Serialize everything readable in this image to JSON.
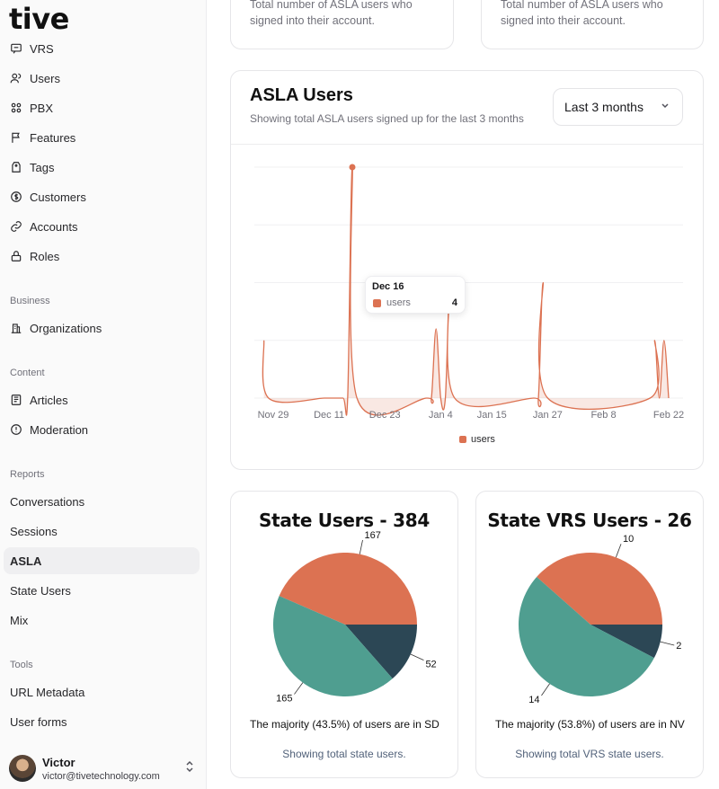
{
  "app": {
    "logo": "tive"
  },
  "sidebar": {
    "items": [
      {
        "label": "VRS",
        "icon": "message-square-icon"
      },
      {
        "label": "Users",
        "icon": "users-icon"
      },
      {
        "label": "PBX",
        "icon": "grid-icon"
      },
      {
        "label": "Features",
        "icon": "flag-icon"
      },
      {
        "label": "Tags",
        "icon": "tag-icon"
      },
      {
        "label": "Customers",
        "icon": "dollar-circle-icon"
      },
      {
        "label": "Accounts",
        "icon": "link-icon"
      },
      {
        "label": "Roles",
        "icon": "lock-icon"
      }
    ],
    "business_label": "Business",
    "business_items": [
      {
        "label": "Organizations",
        "icon": "building-icon"
      }
    ],
    "content_label": "Content",
    "content_items": [
      {
        "label": "Articles",
        "icon": "newspaper-icon"
      },
      {
        "label": "Moderation",
        "icon": "alert-circle-icon"
      }
    ],
    "reports_label": "Reports",
    "reports_items": [
      {
        "label": "Conversations"
      },
      {
        "label": "Sessions"
      },
      {
        "label": "ASLA",
        "active": true
      },
      {
        "label": "State Users"
      },
      {
        "label": "Mix"
      }
    ],
    "tools_label": "Tools",
    "tools_items": [
      {
        "label": "URL Metadata"
      },
      {
        "label": "User forms"
      }
    ],
    "user": {
      "name": "Victor",
      "email": "victor@tivetechnology.com"
    }
  },
  "top_cards": [
    {
      "description": "Total number of ASLA users who signed into their account."
    },
    {
      "description": "Total number of ASLA users who signed into their account."
    }
  ],
  "asla_chart": {
    "title": "ASLA Users",
    "subtitle": "Showing total ASLA users signed up for the last 3 months",
    "range": "Last 3 months",
    "tooltip": {
      "date": "Dec 16",
      "series": "users",
      "value": "4"
    },
    "legend": "users",
    "color": "#dc7252"
  },
  "chart_data": [
    {
      "type": "area",
      "title": "ASLA Users",
      "x_ticks": [
        "Nov 29",
        "Dec 11",
        "Dec 23",
        "Jan 4",
        "Jan 15",
        "Jan 27",
        "Feb 8",
        "Feb 22"
      ],
      "series": [
        {
          "name": "users",
          "points": [
            [
              "Nov 27",
              1
            ],
            [
              "Nov 28",
              0
            ],
            [
              "Dec 10",
              0
            ],
            [
              "Dec 11",
              0
            ],
            [
              "Dec 14",
              0
            ],
            [
              "Dec 15",
              0
            ],
            [
              "Dec 16",
              4
            ],
            [
              "Dec 17",
              0
            ],
            [
              "Jan 1",
              0
            ],
            [
              "Jan 2",
              0
            ],
            [
              "Jan 3",
              1.2
            ],
            [
              "Jan 4",
              0
            ],
            [
              "Jan 5",
              0
            ],
            [
              "Jan 6",
              2
            ],
            [
              "Jan 7",
              0
            ],
            [
              "Jan 24",
              0
            ],
            [
              "Jan 25",
              0
            ],
            [
              "Jan 26",
              2
            ],
            [
              "Jan 27",
              0
            ],
            [
              "Feb 18",
              0
            ],
            [
              "Feb 19",
              1
            ],
            [
              "Feb 20",
              0
            ],
            [
              "Feb 21",
              1
            ],
            [
              "Feb 22",
              0
            ]
          ]
        }
      ],
      "ylim": [
        0,
        4
      ]
    },
    {
      "type": "pie",
      "title": "State Users - 384",
      "labels": [
        "167",
        "52",
        "165"
      ],
      "values": [
        167,
        52,
        165
      ],
      "colors": [
        "#dc7252",
        "#2c4755",
        "#4f9e90"
      ]
    },
    {
      "type": "pie",
      "title": "State VRS Users - 26",
      "labels": [
        "10",
        "2",
        "14"
      ],
      "values": [
        10,
        2,
        14
      ],
      "colors": [
        "#dc7252",
        "#2c4755",
        "#4f9e90"
      ]
    }
  ],
  "state_users": {
    "title": "State Users - 384",
    "majority": "The majority (43.5%) of users are in SD",
    "footer": "Showing total state users."
  },
  "state_vrs_users": {
    "title": "State VRS Users - 26",
    "majority": "The majority (53.8%) of users are in NV",
    "footer": "Showing total VRS state users."
  }
}
